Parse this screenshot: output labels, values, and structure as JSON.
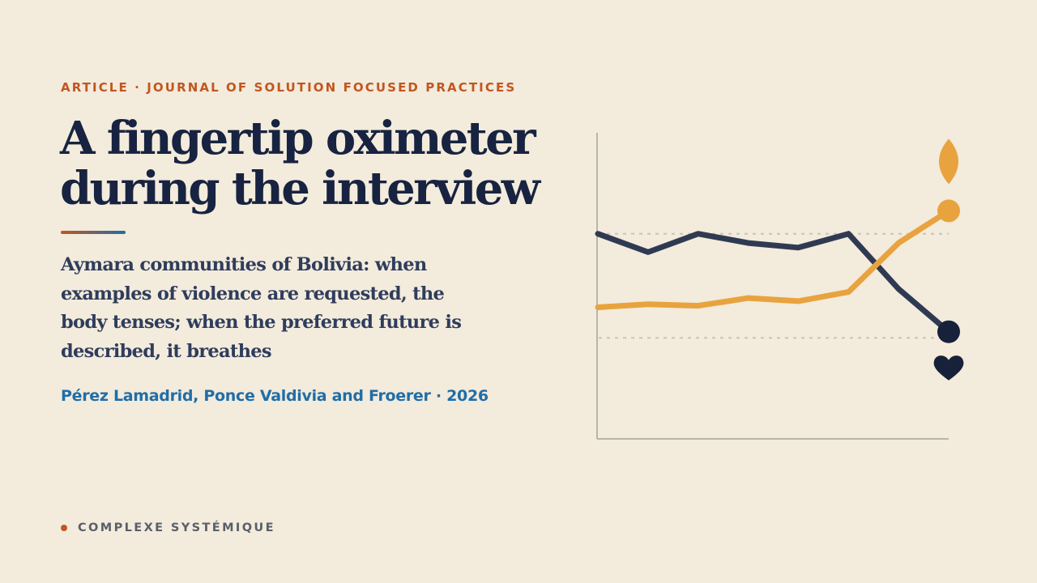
{
  "kicker": "ARTICLE · JOURNAL OF SOLUTION FOCUSED PRACTICES",
  "title": "A fingertip oximeter during the interview",
  "subtitle": "Aymara communities of Bolivia: when examples of violence are requested, the body tenses; when the preferred future is described, it breathes",
  "authors": "Pérez Lamadrid, Ponce Valdivia and Froerer · 2026",
  "footer": {
    "label": "COMPLEXE SYSTÉMIQUE"
  },
  "colors": {
    "background": "#f3ebdc",
    "accent_orange": "#c2561f",
    "accent_blue": "#1f6ea8",
    "title_navy": "#172340",
    "subtitle_slate": "#2f3d5c",
    "series_dark": "#2f3a52",
    "series_gold": "#e8a33f"
  },
  "chart_data": {
    "type": "line",
    "x": [
      0,
      1,
      2,
      3,
      4,
      5,
      6,
      7
    ],
    "ylim": [
      0,
      100
    ],
    "grid_levels": [
      67,
      33
    ],
    "series": [
      {
        "key": "dark",
        "color": "#2f3a52",
        "end_icon": "heart-icon",
        "values": [
          67,
          61,
          67,
          64,
          62.5,
          67,
          49,
          35
        ]
      },
      {
        "key": "gold",
        "color": "#e8a33f",
        "end_icon": "leaf-icon",
        "values": [
          43,
          44,
          43.5,
          46,
          45,
          48,
          64,
          74.5
        ]
      }
    ]
  }
}
